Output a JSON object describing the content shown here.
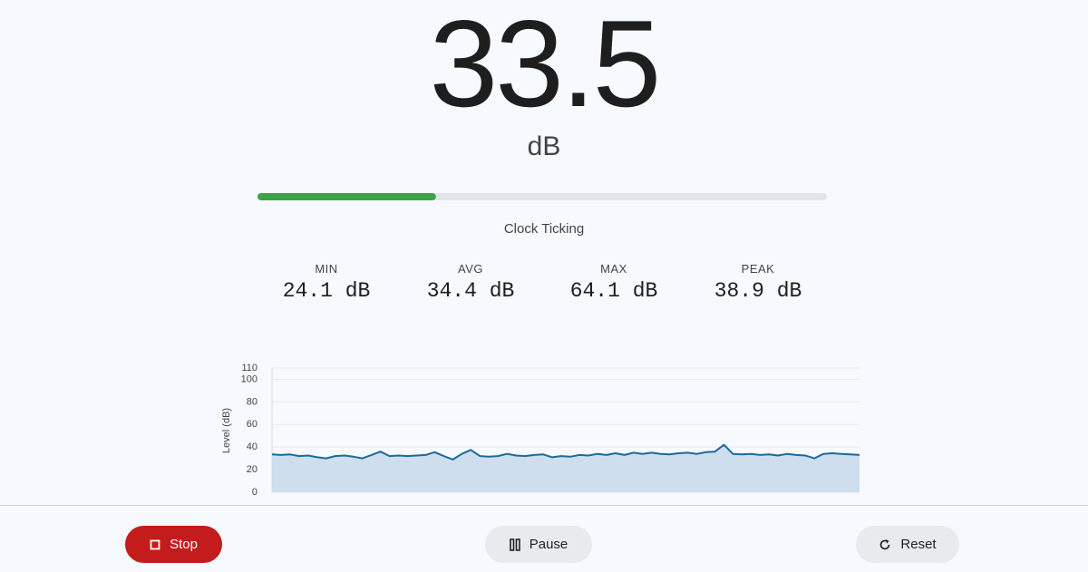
{
  "reading": {
    "value": "33.5",
    "unit": "dB",
    "source": "Clock Ticking"
  },
  "meter": {
    "value": 33.5,
    "range": [
      0,
      110
    ],
    "color": "#3da346",
    "track_color": "#e1e5ea"
  },
  "stats": [
    {
      "label": "MIN",
      "value": "24.1 dB"
    },
    {
      "label": "AVG",
      "value": "34.4 dB"
    },
    {
      "label": "MAX",
      "value": "64.1 dB"
    },
    {
      "label": "PEAK",
      "value": "38.9 dB"
    }
  ],
  "chart_data": {
    "type": "line",
    "ylabel": "Level (dB)",
    "ylim": [
      0,
      110
    ],
    "yticks": [
      0,
      20,
      40,
      60,
      80,
      100,
      110
    ],
    "grid": true,
    "series": [
      {
        "color": "#1c6a9a",
        "fill": "#c7d9ea",
        "values": [
          33.5,
          33,
          33.5,
          32,
          32.5,
          31,
          30,
          32,
          32.5,
          31.5,
          30,
          33,
          36,
          32,
          32.5,
          32,
          32.5,
          33,
          35.5,
          32,
          29,
          34,
          37.5,
          32,
          31.5,
          32,
          34,
          32.5,
          32,
          33,
          33.5,
          31,
          32,
          31.5,
          33,
          32.5,
          34,
          33,
          34.5,
          33,
          35,
          34,
          35,
          34,
          33.5,
          34.5,
          35,
          34,
          35.5,
          36,
          42,
          34,
          33.5,
          34,
          33,
          33.5,
          32.5,
          34,
          33,
          32.5,
          30,
          34,
          34.5,
          34,
          33.5,
          33
        ]
      }
    ]
  },
  "controls": {
    "stop": "Stop",
    "pause": "Pause",
    "reset": "Reset"
  }
}
